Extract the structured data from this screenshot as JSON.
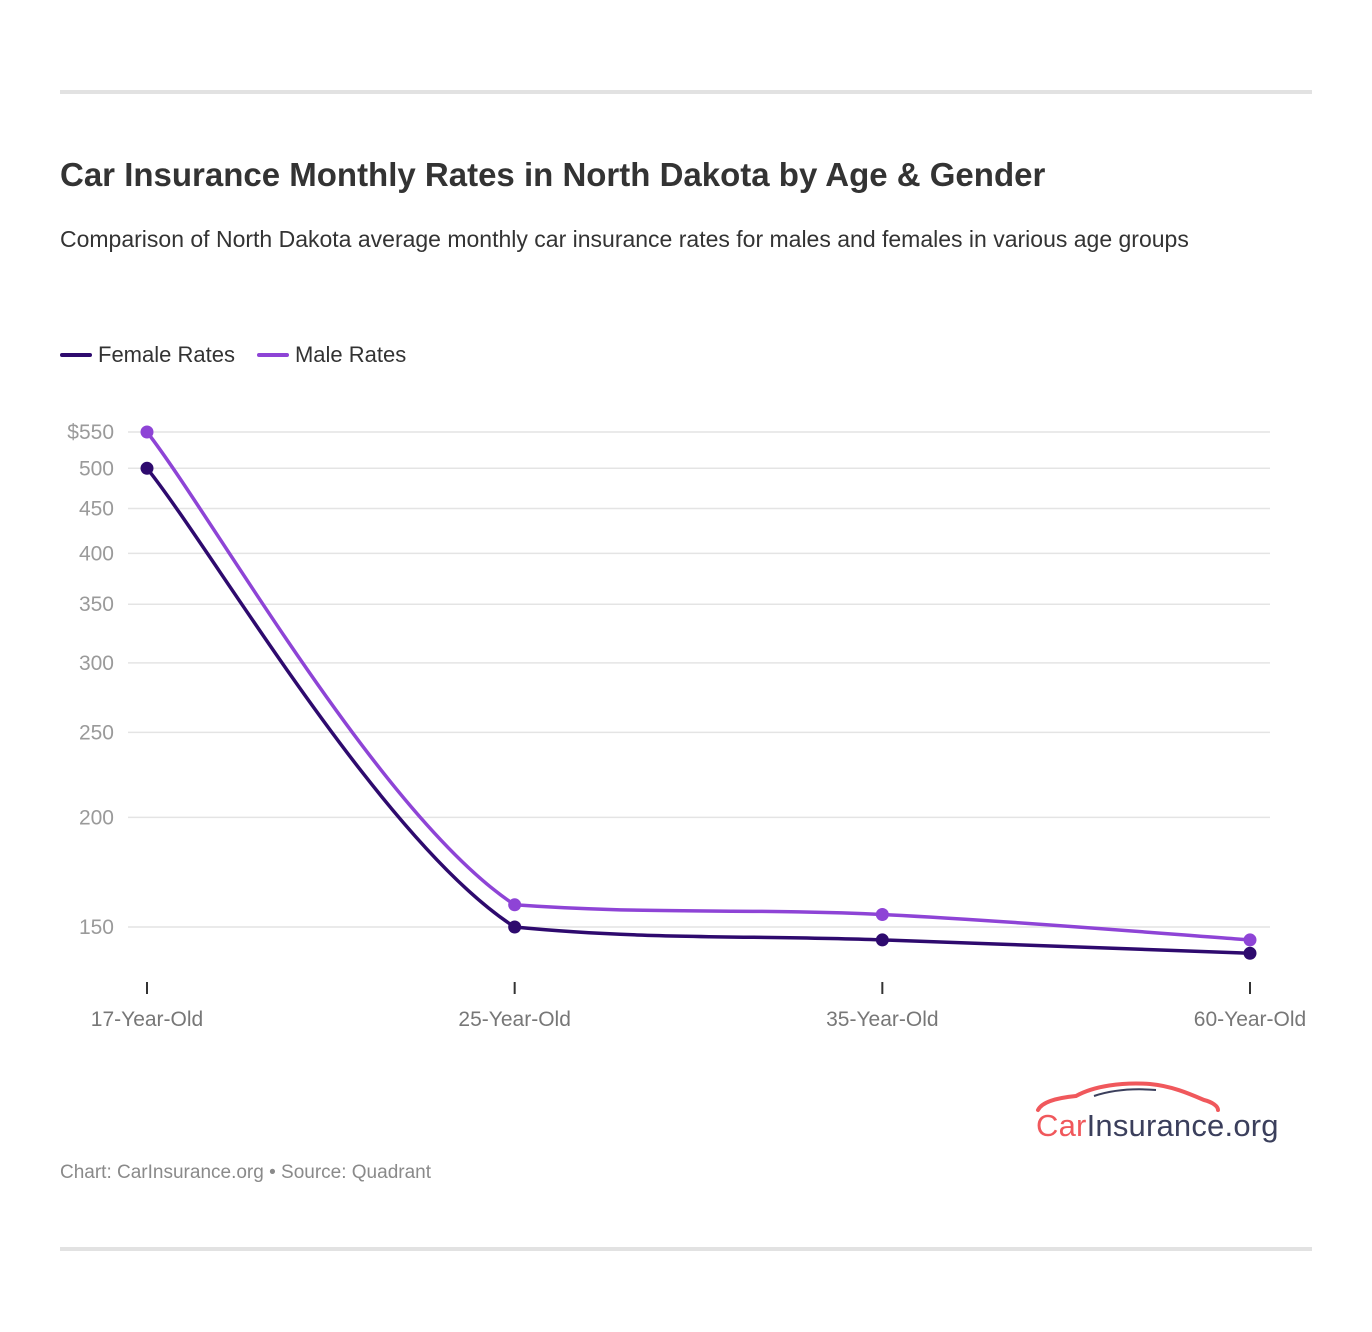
{
  "header": {
    "title": "Car Insurance Monthly Rates in North Dakota by Age & Gender",
    "subtitle": "Comparison of North Dakota average monthly car insurance rates for males and females in various age groups"
  },
  "legend": {
    "items": [
      {
        "label": "Female Rates",
        "color": "#2e0a6e"
      },
      {
        "label": "Male Rates",
        "color": "#8e44d6"
      }
    ]
  },
  "chart_data": {
    "type": "line",
    "categories": [
      "17-Year-Old",
      "25-Year-Old",
      "35-Year-Old",
      "60-Year-Old"
    ],
    "series": [
      {
        "name": "Female Rates",
        "color": "#2e0a6e",
        "values": [
          500,
          150,
          145,
          140
        ]
      },
      {
        "name": "Male Rates",
        "color": "#8e44d6",
        "values": [
          550,
          159,
          155,
          145
        ]
      }
    ],
    "y_scale": "log",
    "ylim": [
      139,
      550
    ],
    "y_ticks": [
      150,
      200,
      250,
      300,
      350,
      400,
      450,
      500,
      550
    ],
    "y_tick_labels": [
      "150",
      "200",
      "250",
      "300",
      "350",
      "400",
      "450",
      "500",
      "$550"
    ],
    "grid": true,
    "legend_position": "top-left",
    "title": "Car Insurance Monthly Rates in North Dakota by Age & Gender"
  },
  "logo": {
    "part1": "Car",
    "part2": "Insurance.org"
  },
  "footer": {
    "text": "Chart: CarInsurance.org • Source: Quadrant"
  }
}
